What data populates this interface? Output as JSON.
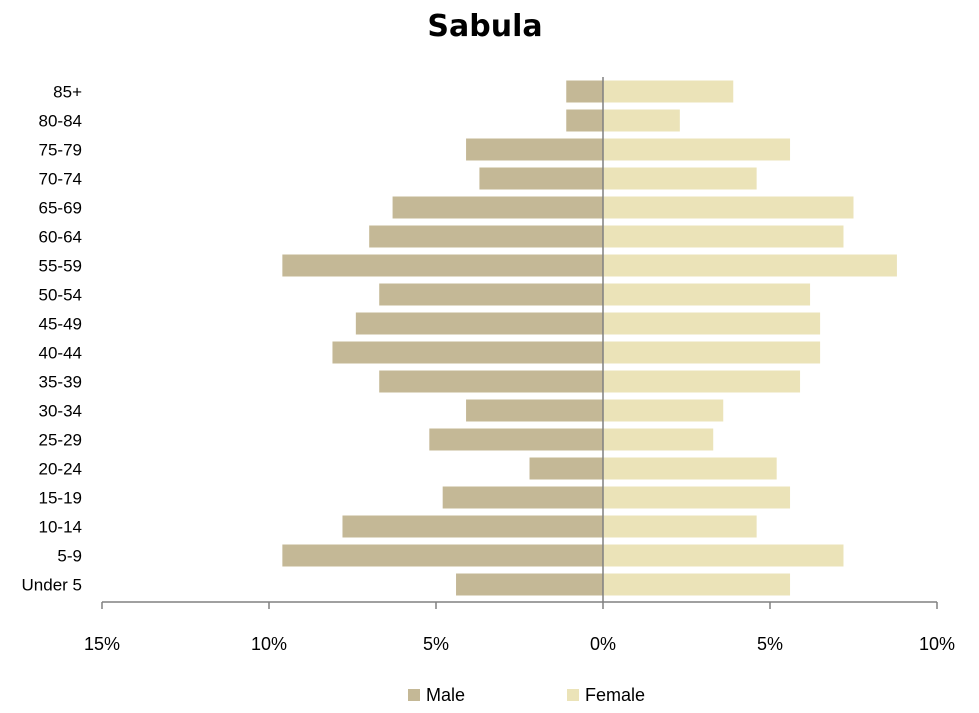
{
  "chart_data": {
    "type": "bar",
    "orientation": "horizontal",
    "title": "Sabula",
    "categories": [
      "85+",
      "80-84",
      "75-79",
      "70-74",
      "65-69",
      "60-64",
      "55-59",
      "50-54",
      "45-49",
      "40-44",
      "35-39",
      "30-34",
      "25-29",
      "20-24",
      "15-19",
      "10-14",
      "5-9",
      "Under 5"
    ],
    "series": [
      {
        "name": "Male",
        "color": "#c4b896",
        "values": [
          -1.1,
          -1.1,
          -4.1,
          -3.7,
          -6.3,
          -7.0,
          -9.6,
          -6.7,
          -7.4,
          -8.1,
          -6.7,
          -4.1,
          -5.2,
          -2.2,
          -4.8,
          -7.8,
          -9.6,
          -4.4
        ]
      },
      {
        "name": "Female",
        "color": "#ebe3b8",
        "values": [
          3.9,
          2.3,
          5.6,
          4.6,
          7.5,
          7.2,
          8.8,
          6.2,
          6.5,
          6.5,
          5.9,
          3.6,
          3.3,
          5.2,
          5.6,
          4.6,
          7.2,
          5.6
        ]
      }
    ],
    "xlim": [
      -15,
      10
    ],
    "xticks": [
      -15,
      -10,
      -5,
      0,
      5,
      10
    ],
    "xtick_labels": [
      "15%",
      "10%",
      "5%",
      "0%",
      "5%",
      "10%"
    ],
    "xlabel": "",
    "ylabel": "",
    "grid": false,
    "legend": "bottom"
  }
}
